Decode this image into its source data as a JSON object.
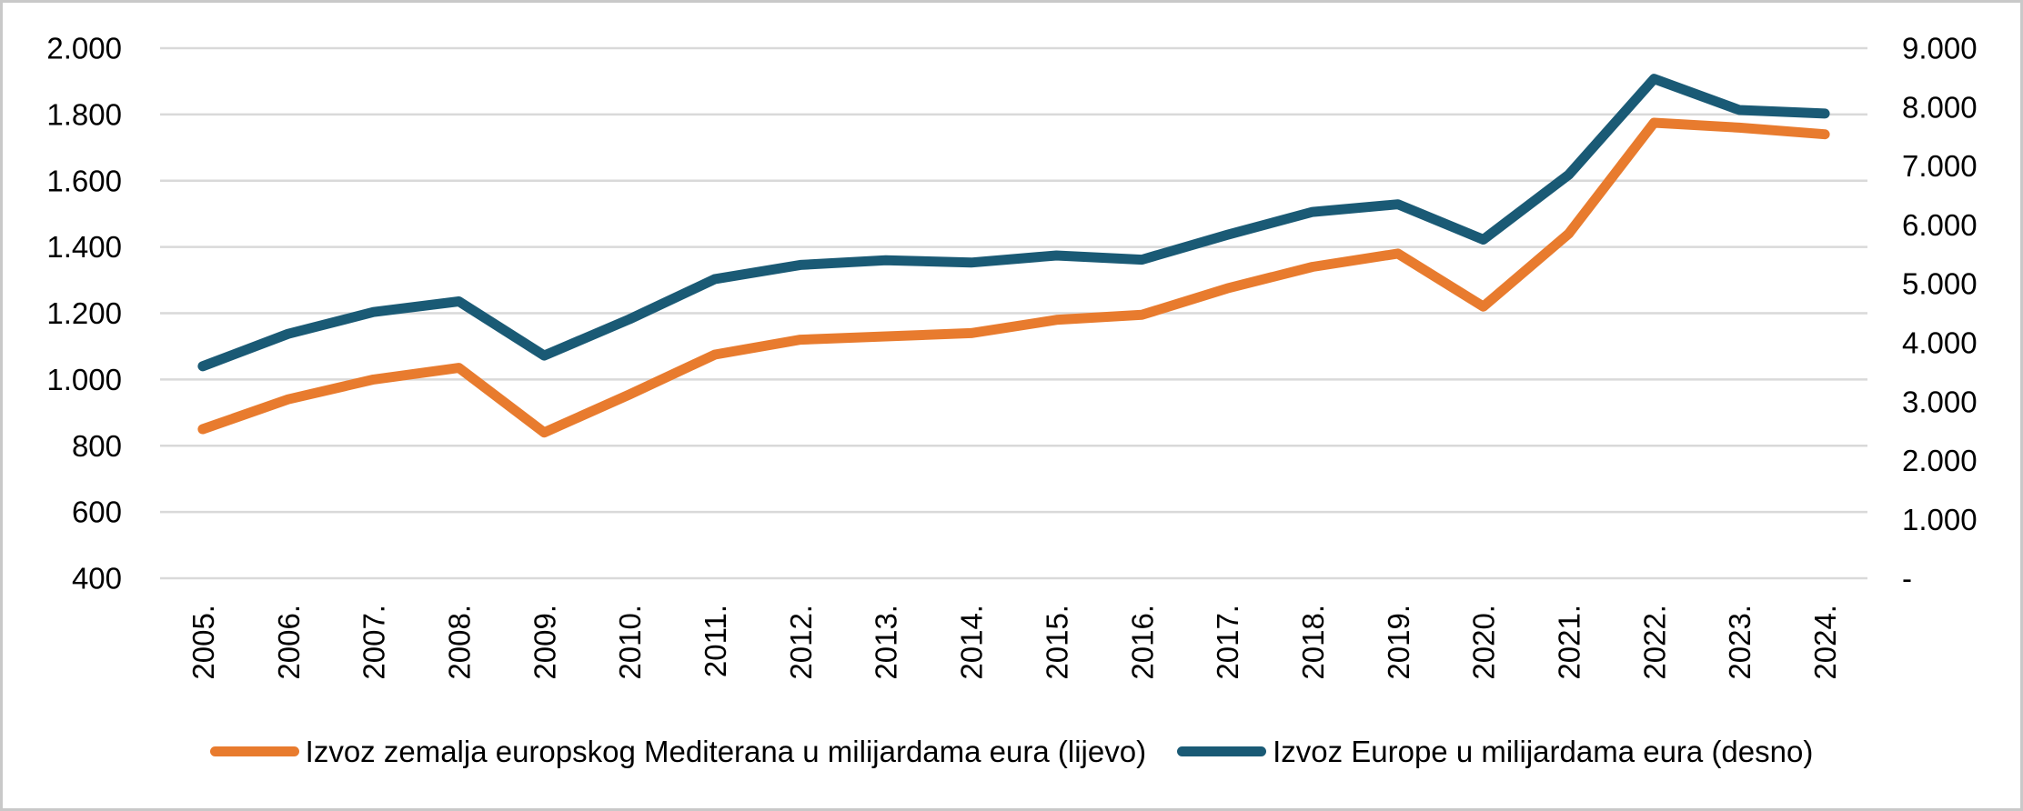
{
  "chart_data": {
    "type": "line",
    "title": "",
    "categories": [
      "2005.",
      "2006.",
      "2007.",
      "2008.",
      "2009.",
      "2010.",
      "2011.",
      "2012.",
      "2013.",
      "2014.",
      "2015.",
      "2016.",
      "2017.",
      "2018.",
      "2019.",
      "2020.",
      "2021.",
      "2022.",
      "2023.",
      "2024."
    ],
    "series": [
      {
        "name": "Izvoz zemalja europskog Mediterana u milijardama eura (lijevo)",
        "axis": "left",
        "color": "#E87B2E",
        "values": [
          850,
          940,
          1000,
          1035,
          840,
          955,
          1075,
          1120,
          1130,
          1140,
          1180,
          1195,
          1275,
          1340,
          1380,
          1220,
          1440,
          1775,
          1760,
          1740
        ]
      },
      {
        "name": "Izvoz Europe u milijardama eura (desno)",
        "axis": "right",
        "color": "#1A5A75",
        "values": [
          3600,
          4150,
          4520,
          4700,
          3780,
          4400,
          5080,
          5320,
          5400,
          5360,
          5480,
          5410,
          5830,
          6220,
          6350,
          5750,
          6850,
          8480,
          7950,
          7890
        ]
      }
    ],
    "left_axis": {
      "min": 400,
      "max": 2000,
      "tick_values": [
        2000,
        1800,
        1600,
        1400,
        1200,
        1000,
        800,
        600,
        400
      ],
      "tick_labels": [
        "2.000",
        "1.800",
        "1.600",
        "1.400",
        "1.200",
        "1.000",
        "800",
        "600",
        "400"
      ]
    },
    "right_axis": {
      "min": 0,
      "max": 9000,
      "tick_values": [
        9000,
        8000,
        7000,
        6000,
        5000,
        4000,
        3000,
        2000,
        1000,
        0
      ],
      "tick_labels": [
        "9.000",
        "8.000",
        "7.000",
        "6.000",
        "5.000",
        "4.000",
        "3.000",
        "2.000",
        "1.000",
        "-"
      ]
    },
    "grid": true,
    "legend_position": "bottom"
  },
  "colors": {
    "gridline": "#D9D9D9",
    "axis_text": "#000000",
    "frame_border": "#C9C9C9",
    "background": "#FFFFFF"
  }
}
